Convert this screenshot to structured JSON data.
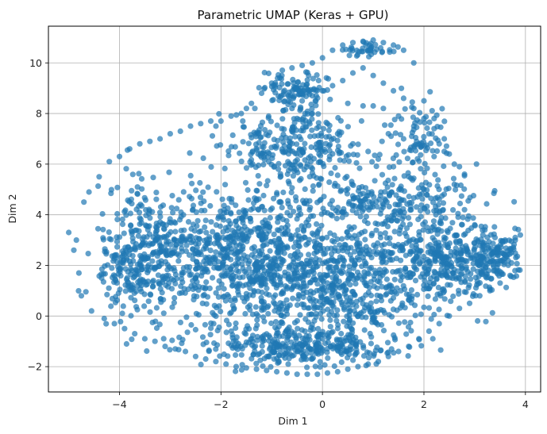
{
  "chart_data": {
    "type": "scatter",
    "title": "Parametric UMAP (Keras + GPU)",
    "xlabel": "Dim 1",
    "ylabel": "Dim 2",
    "xlim": [
      -5.4,
      4.3
    ],
    "ylim": [
      -3.0,
      11.45
    ],
    "xticks": [
      -4,
      -2,
      0,
      2,
      4
    ],
    "xtick_labels": [
      "−4",
      "−2",
      "0",
      "2",
      "4"
    ],
    "yticks": [
      -2,
      0,
      2,
      4,
      6,
      8,
      10
    ],
    "ytick_labels": [
      "−2",
      "0",
      "2",
      "4",
      "6",
      "8",
      "10"
    ],
    "grid": true,
    "legend": "none",
    "point_color": "#1f77b4",
    "point_alpha": 0.7,
    "series": [
      {
        "x": [
          -5.0,
          -4.9,
          -4.8,
          -4.7,
          -4.85,
          -4.6,
          -4.75,
          -4.55,
          -4.4,
          -4.2,
          -4.0,
          -3.8,
          -3.6,
          -3.4,
          -3.2,
          -3.0,
          -2.8,
          -2.6,
          -2.4,
          -2.2,
          -2.0,
          -1.8,
          -1.6,
          -1.4,
          -1.2,
          -1.0,
          -0.8,
          -0.6,
          -0.4,
          -0.2,
          0.0,
          0.2,
          0.4,
          0.6,
          0.8,
          1.0,
          1.2,
          1.4,
          1.6,
          1.8,
          2.0,
          2.2,
          2.4,
          2.6,
          2.8,
          3.0,
          3.2,
          3.4,
          3.6,
          3.8,
          3.9,
          -4.3,
          -4.1,
          -3.9,
          -3.7,
          -3.5,
          -3.3,
          -3.1,
          -2.9,
          -2.7,
          -2.5,
          -2.3,
          -2.1,
          -1.9,
          -1.7,
          -1.5,
          -1.3,
          -1.1,
          -0.9,
          -0.7,
          -0.5,
          -0.3,
          -0.1,
          0.1,
          0.3,
          0.5,
          0.7,
          0.9,
          1.1,
          1.3,
          1.5,
          1.7,
          1.9,
          2.1,
          2.3,
          2.5,
          2.7,
          2.9,
          3.1,
          3.3,
          3.5,
          3.7,
          -0.6,
          -0.4,
          -0.2,
          0.0,
          0.2,
          0.4,
          0.6,
          0.8,
          1.0,
          1.2,
          1.4,
          1.6,
          1.8,
          2.0,
          2.2,
          2.4,
          -0.8,
          -0.5,
          -0.2,
          0.1,
          0.3,
          0.6,
          0.9,
          1.1,
          1.4,
          1.7,
          2.0,
          2.3,
          0.5,
          0.8,
          1.0,
          1.2,
          1.5,
          1.8,
          2.1,
          2.3,
          2.5,
          2.6,
          2.8,
          1.3,
          1.6,
          1.9,
          2.2,
          2.7
        ],
        "y": [
          3.3,
          2.6,
          1.7,
          4.5,
          3.0,
          4.9,
          0.8,
          0.2,
          5.5,
          6.1,
          6.3,
          6.6,
          6.8,
          6.9,
          7.0,
          7.2,
          7.3,
          7.5,
          7.6,
          7.7,
          7.7,
          7.9,
          8.0,
          8.4,
          8.8,
          9.2,
          9.5,
          9.8,
          9.9,
          10.0,
          10.2,
          10.5,
          10.7,
          10.8,
          10.85,
          10.9,
          10.8,
          10.7,
          10.5,
          10.0,
          8.5,
          7.8,
          6.5,
          5.2,
          4.2,
          3.6,
          3.4,
          3.1,
          3.0,
          3.1,
          3.2,
          -0.1,
          -0.3,
          -0.5,
          -0.7,
          -0.9,
          -1.0,
          -1.2,
          -1.3,
          -1.4,
          -1.6,
          -1.7,
          -1.8,
          -1.9,
          -2.0,
          -2.05,
          -2.1,
          -2.15,
          -2.2,
          -2.25,
          -2.3,
          -2.3,
          -2.3,
          -2.25,
          -2.2,
          -2.1,
          -2.0,
          -1.9,
          -1.8,
          -1.6,
          -1.4,
          -1.2,
          -0.9,
          -0.6,
          -0.3,
          0.0,
          0.3,
          0.5,
          0.8,
          1.0,
          1.3,
          1.6,
          8.2,
          8.5,
          8.7,
          8.9,
          9.1,
          9.3,
          9.6,
          9.8,
          9.5,
          9.2,
          8.9,
          8.6,
          8.2,
          7.8,
          7.4,
          7.0,
          7.4,
          7.8,
          8.0,
          7.6,
          7.2,
          6.8,
          6.5,
          6.2,
          5.9,
          5.5,
          5.0,
          4.6,
          8.4,
          8.3,
          8.3,
          8.2,
          7.9,
          7.5,
          7.2,
          6.8,
          6.4,
          6.0,
          5.6,
          7.2,
          7.0,
          6.8,
          6.3,
          5.9
        ]
      }
    ]
  }
}
